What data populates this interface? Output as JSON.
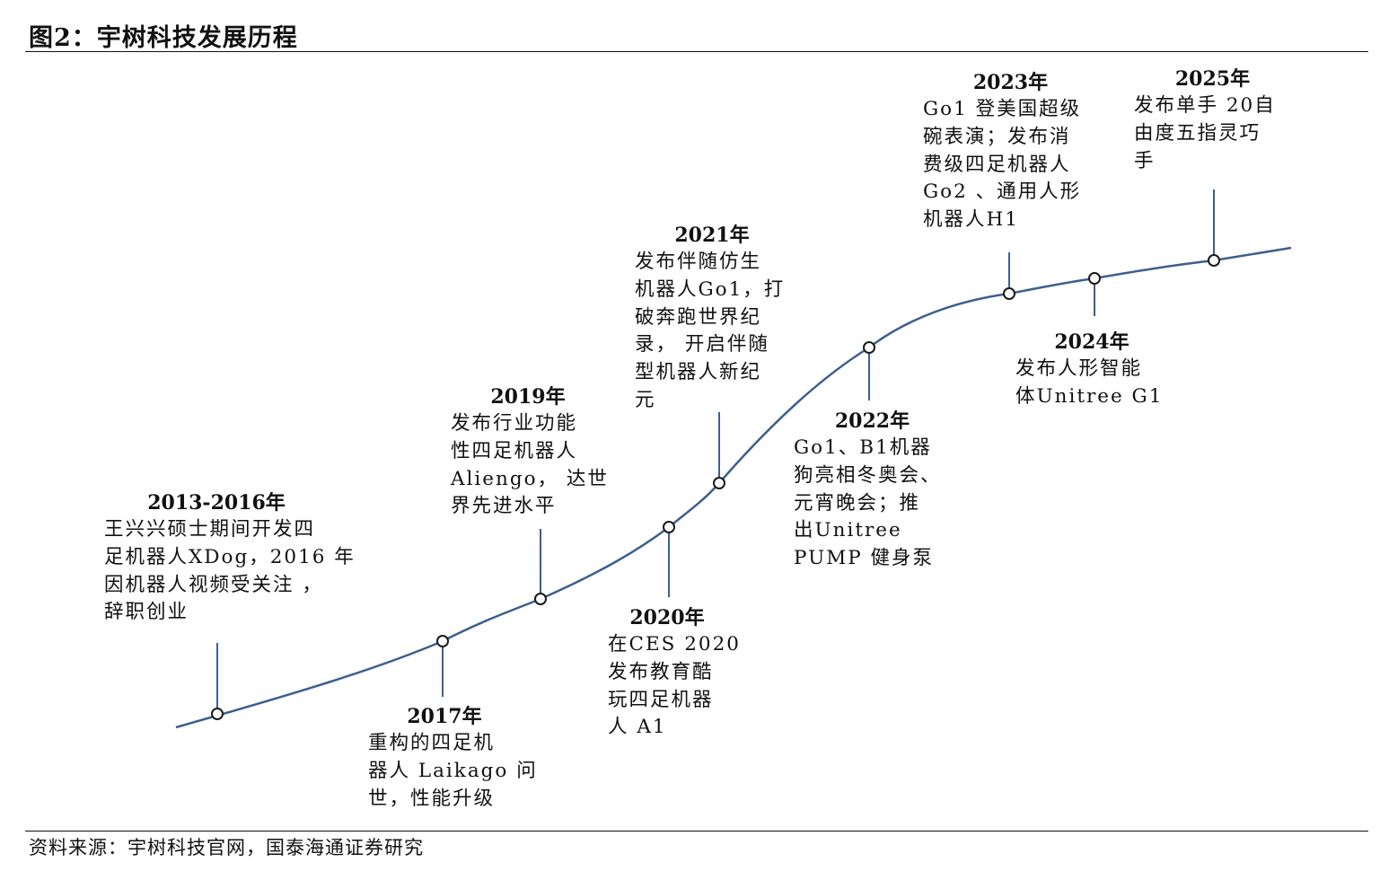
{
  "figure_title": "图2：宇树科技发展历程",
  "source": "资料来源：宇树科技官网，国泰海通证券研究",
  "events": [
    {
      "id": "2013-2016",
      "year": "2013-2016年",
      "lines": [
        "王兴兴硕士期间开发四",
        "足机器人XDog，2016 年",
        "因机器人视频受关注  ，",
        "辞职创业"
      ]
    },
    {
      "id": "2017",
      "year": "2017年",
      "lines": [
        "重构的四足机",
        "器人 Laikago 问",
        "世，性能升级"
      ]
    },
    {
      "id": "2019",
      "year": "2019年",
      "lines": [
        "发布行业功能",
        "性四足机器人",
        "Aliengo， 达世",
        "界先进水平"
      ]
    },
    {
      "id": "2020",
      "year": "2020年",
      "lines": [
        "在CES 2020",
        "发布教育酷",
        "玩四足机器",
        "人 A1"
      ]
    },
    {
      "id": "2021",
      "year": "2021年",
      "lines": [
        "发布伴随仿生",
        "机器人Go1，打",
        "破奔跑世界纪",
        "录， 开启伴随",
        "型机器人新纪",
        "元"
      ]
    },
    {
      "id": "2022",
      "year": "2022年",
      "lines": [
        "Go1、B1机器",
        "狗亮相冬奥会、",
        "元宵晚会；推",
        "出Unitree",
        "PUMP 健身泵"
      ]
    },
    {
      "id": "2023",
      "year": "2023年",
      "lines": [
        "Go1 登美国超级",
        "碗表演；发布消",
        "费级四足机器人",
        "Go2 、通用人形",
        "机器人H1"
      ]
    },
    {
      "id": "2024",
      "year": "2024年",
      "lines": [
        "发布人形智能",
        "体Unitree G1"
      ]
    },
    {
      "id": "2025",
      "year": "2025年",
      "lines": [
        "发布单手 20自",
        "由度五指灵巧",
        "手"
      ]
    }
  ],
  "colors": {
    "curve": "#3d5f8f",
    "marker_stroke": "#1a1a1a",
    "connector": "#3d5f8f"
  }
}
